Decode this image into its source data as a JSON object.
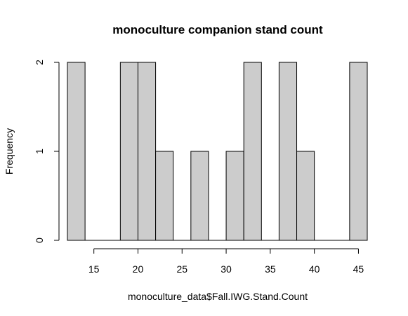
{
  "chart_data": {
    "type": "bar",
    "title": "monoculture companion stand count",
    "xlabel": "monoculture_data$Fall.IWG.Stand.Count",
    "ylabel": "Frequency",
    "bin_width": 2,
    "bins": [
      {
        "start": 12,
        "end": 14,
        "count": 2
      },
      {
        "start": 14,
        "end": 16,
        "count": 0
      },
      {
        "start": 16,
        "end": 18,
        "count": 0
      },
      {
        "start": 18,
        "end": 20,
        "count": 2
      },
      {
        "start": 20,
        "end": 22,
        "count": 2
      },
      {
        "start": 22,
        "end": 24,
        "count": 1
      },
      {
        "start": 24,
        "end": 26,
        "count": 0
      },
      {
        "start": 26,
        "end": 28,
        "count": 1
      },
      {
        "start": 28,
        "end": 30,
        "count": 0
      },
      {
        "start": 30,
        "end": 32,
        "count": 1
      },
      {
        "start": 32,
        "end": 34,
        "count": 2
      },
      {
        "start": 34,
        "end": 36,
        "count": 0
      },
      {
        "start": 36,
        "end": 38,
        "count": 2
      },
      {
        "start": 38,
        "end": 40,
        "count": 1
      },
      {
        "start": 40,
        "end": 42,
        "count": 0
      },
      {
        "start": 42,
        "end": 44,
        "count": 0
      },
      {
        "start": 44,
        "end": 46,
        "count": 2
      }
    ],
    "xticks": [
      15,
      20,
      25,
      30,
      35,
      40,
      45
    ],
    "yticks": [
      0,
      1,
      2
    ],
    "xlim": [
      12,
      46
    ],
    "ylim": [
      0,
      2
    ],
    "bar_color": "#cccccc",
    "grid": false
  }
}
